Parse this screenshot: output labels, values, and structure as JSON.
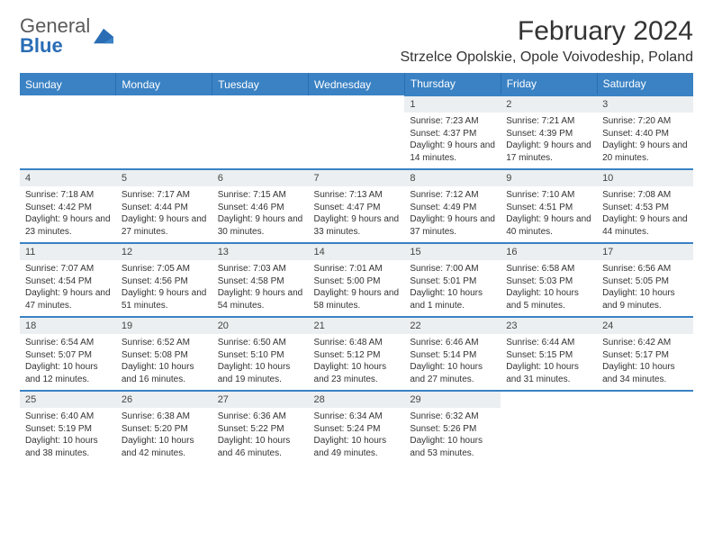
{
  "brand": {
    "name1": "General",
    "name2": "Blue"
  },
  "title": "February 2024",
  "location": "Strzelce Opolskie, Opole Voivodeship, Poland",
  "colors": {
    "header_bg": "#3a82c4",
    "header_text": "#ffffff",
    "daynum_bg": "#eceff1",
    "row_border": "#3a82c4",
    "brand_gray": "#5a5a5a",
    "brand_blue": "#2a6db5"
  },
  "typography": {
    "title_fontsize_pt": 22,
    "location_fontsize_pt": 12,
    "header_fontsize_pt": 9,
    "daynum_fontsize_pt": 8,
    "body_fontsize_pt": 7.5
  },
  "layout": {
    "first_weekday_index": 4,
    "days_in_month": 29,
    "columns": 7,
    "rows": 5
  },
  "weekdays": [
    "Sunday",
    "Monday",
    "Tuesday",
    "Wednesday",
    "Thursday",
    "Friday",
    "Saturday"
  ],
  "days": [
    {
      "n": 1,
      "sunrise": "7:23 AM",
      "sunset": "4:37 PM",
      "daylight": "9 hours and 14 minutes."
    },
    {
      "n": 2,
      "sunrise": "7:21 AM",
      "sunset": "4:39 PM",
      "daylight": "9 hours and 17 minutes."
    },
    {
      "n": 3,
      "sunrise": "7:20 AM",
      "sunset": "4:40 PM",
      "daylight": "9 hours and 20 minutes."
    },
    {
      "n": 4,
      "sunrise": "7:18 AM",
      "sunset": "4:42 PM",
      "daylight": "9 hours and 23 minutes."
    },
    {
      "n": 5,
      "sunrise": "7:17 AM",
      "sunset": "4:44 PM",
      "daylight": "9 hours and 27 minutes."
    },
    {
      "n": 6,
      "sunrise": "7:15 AM",
      "sunset": "4:46 PM",
      "daylight": "9 hours and 30 minutes."
    },
    {
      "n": 7,
      "sunrise": "7:13 AM",
      "sunset": "4:47 PM",
      "daylight": "9 hours and 33 minutes."
    },
    {
      "n": 8,
      "sunrise": "7:12 AM",
      "sunset": "4:49 PM",
      "daylight": "9 hours and 37 minutes."
    },
    {
      "n": 9,
      "sunrise": "7:10 AM",
      "sunset": "4:51 PM",
      "daylight": "9 hours and 40 minutes."
    },
    {
      "n": 10,
      "sunrise": "7:08 AM",
      "sunset": "4:53 PM",
      "daylight": "9 hours and 44 minutes."
    },
    {
      "n": 11,
      "sunrise": "7:07 AM",
      "sunset": "4:54 PM",
      "daylight": "9 hours and 47 minutes."
    },
    {
      "n": 12,
      "sunrise": "7:05 AM",
      "sunset": "4:56 PM",
      "daylight": "9 hours and 51 minutes."
    },
    {
      "n": 13,
      "sunrise": "7:03 AM",
      "sunset": "4:58 PM",
      "daylight": "9 hours and 54 minutes."
    },
    {
      "n": 14,
      "sunrise": "7:01 AM",
      "sunset": "5:00 PM",
      "daylight": "9 hours and 58 minutes."
    },
    {
      "n": 15,
      "sunrise": "7:00 AM",
      "sunset": "5:01 PM",
      "daylight": "10 hours and 1 minute."
    },
    {
      "n": 16,
      "sunrise": "6:58 AM",
      "sunset": "5:03 PM",
      "daylight": "10 hours and 5 minutes."
    },
    {
      "n": 17,
      "sunrise": "6:56 AM",
      "sunset": "5:05 PM",
      "daylight": "10 hours and 9 minutes."
    },
    {
      "n": 18,
      "sunrise": "6:54 AM",
      "sunset": "5:07 PM",
      "daylight": "10 hours and 12 minutes."
    },
    {
      "n": 19,
      "sunrise": "6:52 AM",
      "sunset": "5:08 PM",
      "daylight": "10 hours and 16 minutes."
    },
    {
      "n": 20,
      "sunrise": "6:50 AM",
      "sunset": "5:10 PM",
      "daylight": "10 hours and 19 minutes."
    },
    {
      "n": 21,
      "sunrise": "6:48 AM",
      "sunset": "5:12 PM",
      "daylight": "10 hours and 23 minutes."
    },
    {
      "n": 22,
      "sunrise": "6:46 AM",
      "sunset": "5:14 PM",
      "daylight": "10 hours and 27 minutes."
    },
    {
      "n": 23,
      "sunrise": "6:44 AM",
      "sunset": "5:15 PM",
      "daylight": "10 hours and 31 minutes."
    },
    {
      "n": 24,
      "sunrise": "6:42 AM",
      "sunset": "5:17 PM",
      "daylight": "10 hours and 34 minutes."
    },
    {
      "n": 25,
      "sunrise": "6:40 AM",
      "sunset": "5:19 PM",
      "daylight": "10 hours and 38 minutes."
    },
    {
      "n": 26,
      "sunrise": "6:38 AM",
      "sunset": "5:20 PM",
      "daylight": "10 hours and 42 minutes."
    },
    {
      "n": 27,
      "sunrise": "6:36 AM",
      "sunset": "5:22 PM",
      "daylight": "10 hours and 46 minutes."
    },
    {
      "n": 28,
      "sunrise": "6:34 AM",
      "sunset": "5:24 PM",
      "daylight": "10 hours and 49 minutes."
    },
    {
      "n": 29,
      "sunrise": "6:32 AM",
      "sunset": "5:26 PM",
      "daylight": "10 hours and 53 minutes."
    }
  ],
  "labels": {
    "sunrise": "Sunrise:",
    "sunset": "Sunset:",
    "daylight": "Daylight:"
  }
}
